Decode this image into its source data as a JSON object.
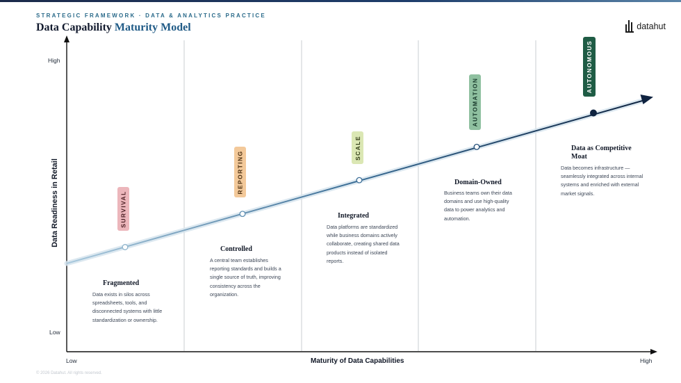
{
  "header": {
    "eyebrow": "STRATEGIC FRAMEWORK · DATA & ANALYTICS PRACTICE",
    "title_main": "Data Capability",
    "title_accent": "Maturity Model"
  },
  "logo": {
    "text": "datahut",
    "icon": "datahut-logo-icon"
  },
  "axes": {
    "y_label": "Data Readiness in Retail",
    "y_high": "High",
    "y_low": "Low",
    "x_label": "Maturity of Data Capabilities",
    "x_low": "Low",
    "x_high": "High"
  },
  "stages": [
    {
      "tag": "SURVIVAL",
      "tag_bg": "#ecb6bb",
      "tag_fg": "#4a1e23",
      "title": "Fragmented",
      "desc": "Data exists in silos across spreadsheets, tools, and disconnected systems with little standardization or ownership."
    },
    {
      "tag": "REPORTING",
      "tag_bg": "#f3c99a",
      "tag_fg": "#4a2e10",
      "title": "Controlled",
      "desc": "A central team establishes reporting standards and builds a single source of truth, improving consistency across the organization."
    },
    {
      "tag": "SCALE",
      "tag_bg": "#dbe7b4",
      "tag_fg": "#2f3a14",
      "title": "Integrated",
      "desc": "Data platforms are standardized while business domains actively collaborate, creating shared data products instead of isolated reports."
    },
    {
      "tag": "AUTOMATION",
      "tag_bg": "#8fc0a0",
      "tag_fg": "#17382a",
      "title": "Domain-Owned",
      "desc": "Business teams own their data domains and use high-quality data to power analytics and automation."
    },
    {
      "tag": "AUTONOMOUS",
      "tag_bg": "#1f5c45",
      "tag_fg": "#ffffff",
      "title": "Data as Competitive Moat",
      "desc": "Data becomes infrastructure — seamlessly integrated across internal systems and enriched with external market signals."
    }
  ],
  "colors": {
    "axis": "#111111",
    "divider": "#c8ccd1",
    "trend_start": "#a9c9dd",
    "trend_end": "#0f2340",
    "arrow_head": "#0f2340"
  },
  "footer": {
    "copyright": "© 2026 Datahut. All rights reserved."
  }
}
